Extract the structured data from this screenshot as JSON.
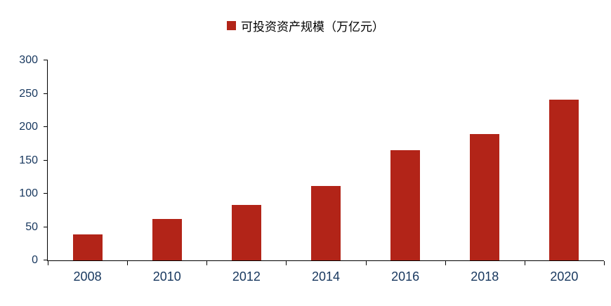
{
  "legend": {
    "label": "可投资资产规模（万亿元）"
  },
  "chart_data": {
    "type": "bar",
    "title": "可投资资产规模（万亿元）",
    "series_name": "可投资资产规模（万亿元）",
    "categories": [
      "2008",
      "2010",
      "2012",
      "2014",
      "2016",
      "2018",
      "2020"
    ],
    "values": [
      39,
      62,
      83,
      112,
      165,
      190,
      241
    ],
    "xlabel": "",
    "ylabel": "",
    "ylim": [
      0,
      300
    ],
    "yticks": [
      0,
      50,
      100,
      150,
      200,
      250,
      300
    ],
    "bar_color": "#B22418",
    "axis_text_color": "#17375E",
    "axis_line_color": "#000000",
    "grid": false,
    "legend_position": "top-center"
  }
}
